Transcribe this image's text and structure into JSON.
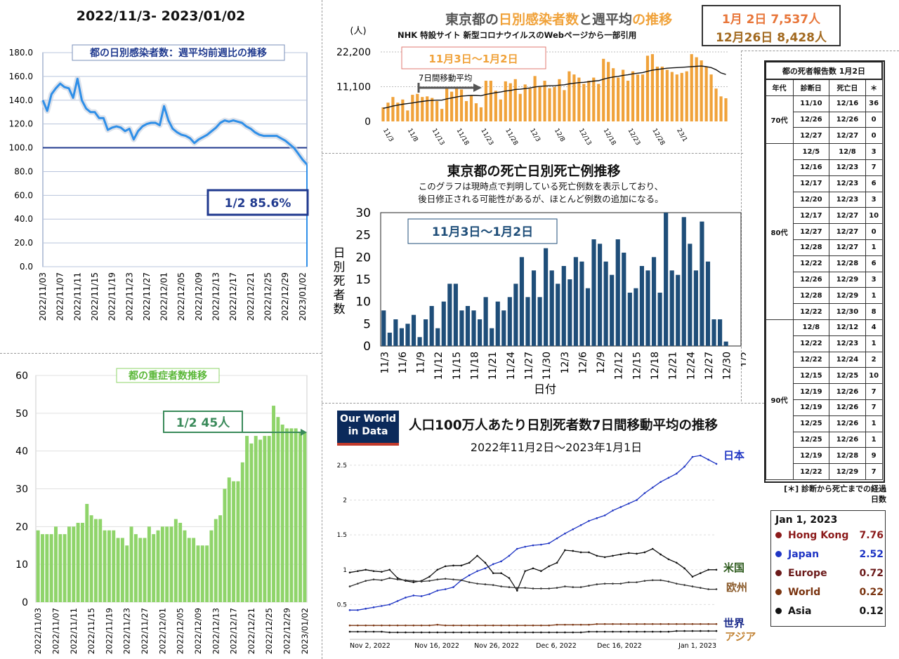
{
  "main_title": "2022/11/3- 2023/01/02",
  "colors": {
    "blue": "#2f8fe8",
    "navy": "#203a8f",
    "green": "#8fd46a",
    "orange": "#f0a23a",
    "darknavy": "#1f4e79"
  },
  "chart_data": [
    {
      "id": "ratio",
      "type": "line",
      "title": "都の日別感染者数：週平均前週比の推移",
      "ylim": [
        0,
        180
      ],
      "yticks": [
        "0.0",
        "20.0",
        "40.0",
        "60.0",
        "80.0",
        "100.0",
        "120.0",
        "140.0",
        "160.0",
        "180.0"
      ],
      "xticks": [
        "2022/11/03",
        "2022/11/07",
        "2022/11/11",
        "2022/11/15",
        "2022/11/19",
        "2022/11/23",
        "2022/11/27",
        "2022/12/01",
        "2022/12/05",
        "2022/12/09",
        "2022/12/13",
        "2022/12/17",
        "2022/12/21",
        "2022/12/25",
        "2022/12/29",
        "2023/01/02"
      ],
      "reference_line": 100,
      "values": [
        140,
        131,
        145,
        150,
        154,
        151,
        150,
        142,
        158,
        140,
        133,
        130,
        130,
        125,
        125,
        115,
        117,
        118,
        117,
        114,
        116,
        107,
        114,
        118,
        120,
        121,
        121,
        119,
        135,
        123,
        116,
        113,
        111,
        110,
        108,
        104,
        107,
        109,
        111,
        114,
        117,
        121,
        123,
        122,
        123,
        122,
        121,
        118,
        116,
        113,
        111,
        110,
        110,
        110,
        110,
        108,
        106,
        103,
        100,
        95,
        90,
        86
      ],
      "annotation": "1/2  85.6%"
    },
    {
      "id": "severe",
      "type": "bar",
      "title": "都の重症者数推移",
      "ylim": [
        0,
        60
      ],
      "yticks": [
        "0",
        "10",
        "20",
        "30",
        "40",
        "50",
        "60"
      ],
      "xticks": [
        "2022/11/03",
        "2022/11/07",
        "2022/11/11",
        "2022/11/15",
        "2022/11/19",
        "2022/11/23",
        "2022/11/27",
        "2022/12/01",
        "2022/12/05",
        "2022/12/09",
        "2022/12/13",
        "2022/12/17",
        "2022/12/21",
        "2022/12/25",
        "2022/12/29",
        "2023/01/02"
      ],
      "values": [
        19,
        18,
        18,
        18,
        20,
        18,
        18,
        20,
        20,
        21,
        21,
        26,
        23,
        22,
        22,
        19,
        19,
        19,
        17,
        17,
        15,
        20,
        18,
        17,
        17,
        20,
        18,
        19,
        20,
        20,
        20,
        22,
        21,
        19,
        17,
        17,
        15,
        15,
        15,
        19,
        22,
        23,
        30,
        33,
        32,
        32,
        37,
        44,
        42,
        44,
        43,
        44,
        44,
        52,
        49,
        47,
        46,
        46,
        46,
        45,
        45
      ],
      "annotation": "1/2 45人"
    },
    {
      "id": "cases",
      "type": "bar",
      "title_parts": [
        "東京都の",
        "日別感染者数",
        "と",
        "週平均",
        "の推移"
      ],
      "subtitle": "NHK 特設サイト 新型コロナウイルスのWebページから一部引用",
      "ylabel": "(人)",
      "yticks": [
        "0",
        "11,100",
        "22,200"
      ],
      "ylim": [
        0,
        22200
      ],
      "xticks": [
        "11/3",
        "11/8",
        "11/13",
        "11/18",
        "11/23",
        "11/28",
        "12/3",
        "12/8",
        "12/13",
        "12/18",
        "12/23",
        "12/28",
        "23/1"
      ],
      "range_label": "11月3日〜1月2日",
      "ma_label": "7日間移動平均",
      "values": [
        4500,
        6000,
        7800,
        6000,
        7000,
        3500,
        8500,
        8800,
        7800,
        8000,
        7500,
        6500,
        4000,
        11000,
        9500,
        10500,
        10200,
        6500,
        8200,
        5800,
        4500,
        13000,
        13000,
        9800,
        7000,
        12800,
        12200,
        13500,
        8800,
        11800,
        10500,
        14500,
        11000,
        13000,
        10600,
        11000,
        13500,
        10000,
        16000,
        15000,
        14000,
        12000,
        13000,
        14000,
        12000,
        20000,
        19000,
        17000,
        14000,
        16500,
        13000,
        16000,
        15000,
        15000,
        21000,
        21500,
        17500,
        17500,
        16500,
        15800,
        15000,
        15500,
        16000,
        21500,
        20500,
        19500,
        17500,
        15000,
        10500,
        8000,
        7400
      ],
      "moving_average": [
        4200,
        4500,
        4900,
        5200,
        5500,
        5700,
        5900,
        6200,
        6400,
        6600,
        6700,
        6800,
        6800,
        7200,
        7500,
        7800,
        8100,
        8200,
        8300,
        8300,
        8200,
        8600,
        8900,
        9200,
        9400,
        9700,
        9900,
        10200,
        10300,
        10500,
        10700,
        11000,
        11200,
        11300,
        11400,
        11400,
        11600,
        11700,
        12000,
        12200,
        12400,
        12500,
        12700,
        12900,
        13000,
        13500,
        13900,
        14200,
        14400,
        14700,
        14900,
        15200,
        15400,
        15600,
        16000,
        16400,
        16600,
        16800,
        17000,
        17100,
        17200,
        17300,
        17400,
        17500,
        17600,
        17700,
        17500,
        17200,
        16500,
        15500,
        15000
      ]
    },
    {
      "id": "deaths",
      "type": "bar",
      "title": "東京都の死亡日別死亡例推移",
      "note": [
        "このグラフは現時点で判明している死亡例数を表示しており、",
        "後日修正される可能性があるが、ほとんど例数の追加になる。"
      ],
      "ylabel": "日別死者数",
      "xlabel": "日付",
      "ylim": [
        0,
        30
      ],
      "yticks": [
        "0",
        "5",
        "10",
        "15",
        "20",
        "25",
        "30"
      ],
      "xticks": [
        "11/3",
        "11/6",
        "11/9",
        "11/12",
        "11/15",
        "11/18",
        "11/21",
        "11/24",
        "11/27",
        "11/30",
        "12/3",
        "12/6",
        "12/9",
        "12/12",
        "12/15",
        "12/18",
        "12/21",
        "12/24",
        "12/27",
        "12/30",
        "1/2"
      ],
      "range_label": "11月3日〜1月2日",
      "values": [
        8,
        3,
        6,
        4,
        5,
        7,
        2,
        6,
        9,
        4,
        10,
        14,
        14,
        8,
        9,
        8,
        6,
        11,
        4,
        10,
        8,
        11,
        14,
        20,
        11,
        17,
        11,
        22,
        17,
        14,
        18,
        15,
        20,
        19,
        13,
        24,
        23,
        19,
        16,
        24,
        21,
        12,
        13,
        18,
        17,
        20,
        12,
        30,
        17,
        16,
        29,
        23,
        17,
        28,
        19,
        6,
        6,
        1,
        0,
        0
      ]
    },
    {
      "id": "owid",
      "type": "line",
      "logo": [
        "Our World",
        "in Data"
      ],
      "title": "人口100万人あたり日別死者数7日間移動平均の推移",
      "subtitle": "2022年11月2日〜2023年1月1日",
      "ylim": [
        0,
        2.6
      ],
      "yticks": [
        "0.5",
        "1",
        "1.5",
        "2",
        "2.5"
      ],
      "xticks": [
        "Nov 2, 2022",
        "Nov 16, 2022",
        "Nov 26, 2022",
        "Dec 6, 2022",
        "Dec 16, 2022",
        "Jan 1, 2023"
      ],
      "series": [
        {
          "name": "日本",
          "values": [
            0.42,
            0.42,
            0.44,
            0.46,
            0.48,
            0.5,
            0.55,
            0.6,
            0.63,
            0.62,
            0.65,
            0.7,
            0.72,
            0.75,
            0.85,
            0.92,
            0.98,
            1.02,
            1.08,
            1.12,
            1.2,
            1.3,
            1.33,
            1.35,
            1.36,
            1.38,
            1.45,
            1.52,
            1.58,
            1.64,
            1.7,
            1.74,
            1.78,
            1.85,
            1.9,
            1.95,
            2.0,
            2.1,
            2.18,
            2.26,
            2.32,
            2.38,
            2.48,
            2.62,
            2.64,
            2.58,
            2.52
          ]
        },
        {
          "name": "米国",
          "values": [
            0.96,
            0.98,
            1.0,
            0.98,
            0.97,
            1.0,
            0.88,
            0.84,
            0.82,
            0.84,
            0.9,
            1.0,
            1.05,
            1.06,
            1.06,
            1.1,
            1.2,
            1.1,
            0.95,
            0.95,
            0.88,
            0.7,
            0.98,
            1.02,
            0.98,
            1.05,
            1.1,
            1.28,
            1.27,
            1.25,
            1.25,
            1.2,
            1.18,
            1.2,
            1.22,
            1.24,
            1.23,
            1.25,
            1.3,
            1.22,
            1.15,
            1.1,
            1.02,
            0.9,
            0.95,
            1.0,
            1.0
          ]
        },
        {
          "name": "欧州",
          "values": [
            0.76,
            0.8,
            0.84,
            0.86,
            0.85,
            0.88,
            0.86,
            0.85,
            0.84,
            0.83,
            0.84,
            0.86,
            0.87,
            0.86,
            0.85,
            0.82,
            0.8,
            0.79,
            0.78,
            0.76,
            0.75,
            0.74,
            0.74,
            0.73,
            0.73,
            0.73,
            0.74,
            0.76,
            0.75,
            0.75,
            0.77,
            0.79,
            0.8,
            0.8,
            0.8,
            0.82,
            0.82,
            0.84,
            0.85,
            0.85,
            0.83,
            0.8,
            0.78,
            0.76,
            0.74,
            0.72,
            0.72
          ]
        },
        {
          "name": "世界",
          "values": [
            0.2,
            0.2,
            0.2,
            0.2,
            0.2,
            0.2,
            0.2,
            0.2,
            0.2,
            0.2,
            0.2,
            0.21,
            0.2,
            0.2,
            0.2,
            0.2,
            0.2,
            0.2,
            0.2,
            0.2,
            0.2,
            0.2,
            0.2,
            0.2,
            0.2,
            0.2,
            0.21,
            0.21,
            0.21,
            0.21,
            0.21,
            0.22,
            0.22,
            0.22,
            0.22,
            0.22,
            0.22,
            0.22,
            0.22,
            0.22,
            0.22,
            0.22,
            0.22,
            0.22,
            0.22,
            0.22,
            0.22
          ]
        },
        {
          "name": "アジア",
          "values": [
            0.11,
            0.11,
            0.11,
            0.11,
            0.11,
            0.1,
            0.1,
            0.1,
            0.1,
            0.1,
            0.1,
            0.1,
            0.1,
            0.1,
            0.1,
            0.1,
            0.1,
            0.1,
            0.1,
            0.1,
            0.1,
            0.1,
            0.1,
            0.1,
            0.1,
            0.1,
            0.1,
            0.1,
            0.1,
            0.1,
            0.11,
            0.11,
            0.11,
            0.11,
            0.11,
            0.11,
            0.11,
            0.11,
            0.11,
            0.11,
            0.11,
            0.12,
            0.12,
            0.12,
            0.12,
            0.12,
            0.12
          ]
        }
      ],
      "legend_title": "Jan 1, 2023",
      "legend": [
        {
          "name": "Hong Kong",
          "value": "7.76",
          "color": "#8b1a1a"
        },
        {
          "name": "Japan",
          "value": "2.52",
          "color": "#1f35c4"
        },
        {
          "name": "Europe",
          "value": "0.72",
          "color": "#6b1a1a"
        },
        {
          "name": "World",
          "value": "0.22",
          "color": "#7a3410"
        },
        {
          "name": "Asia",
          "value": "0.12",
          "color": "#111111"
        }
      ]
    }
  ],
  "daily_box": {
    "line1": "1月  2日  7,537人",
    "line2": "12月26日 8,428人"
  },
  "death_table": {
    "title": "都の死者報告数 1月2日",
    "headers": [
      "年代",
      "診断日",
      "死亡日",
      "＊"
    ],
    "groups": [
      {
        "age": "70代",
        "rows": [
          [
            "11/10",
            "12/16",
            "36"
          ],
          [
            "12/26",
            "12/26",
            "0"
          ],
          [
            "12/27",
            "12/27",
            "0"
          ]
        ]
      },
      {
        "age": "80代",
        "rows": [
          [
            "12/5",
            "12/8",
            "3"
          ],
          [
            "12/16",
            "12/23",
            "7"
          ],
          [
            "12/17",
            "12/23",
            "6"
          ],
          [
            "12/20",
            "12/23",
            "3"
          ],
          [
            "12/17",
            "12/27",
            "10"
          ],
          [
            "12/27",
            "12/27",
            "0"
          ],
          [
            "12/28",
            "12/27",
            "1"
          ],
          [
            "12/22",
            "12/28",
            "6"
          ],
          [
            "12/26",
            "12/29",
            "3"
          ],
          [
            "12/28",
            "12/29",
            "1"
          ],
          [
            "12/22",
            "12/30",
            "8"
          ]
        ]
      },
      {
        "age": "90代",
        "rows": [
          [
            "12/8",
            "12/12",
            "4"
          ],
          [
            "12/22",
            "12/23",
            "1"
          ],
          [
            "12/22",
            "12/24",
            "2"
          ],
          [
            "12/15",
            "12/25",
            "10"
          ],
          [
            "12/19",
            "12/26",
            "7"
          ],
          [
            "12/19",
            "12/26",
            "7"
          ],
          [
            "12/25",
            "12/26",
            "1"
          ],
          [
            "12/25",
            "12/26",
            "1"
          ],
          [
            "12/19",
            "12/28",
            "9"
          ],
          [
            "12/22",
            "12/29",
            "7"
          ]
        ]
      }
    ],
    "footnote1": "[＊] 診断から死亡までの経過",
    "footnote2": "日数"
  }
}
